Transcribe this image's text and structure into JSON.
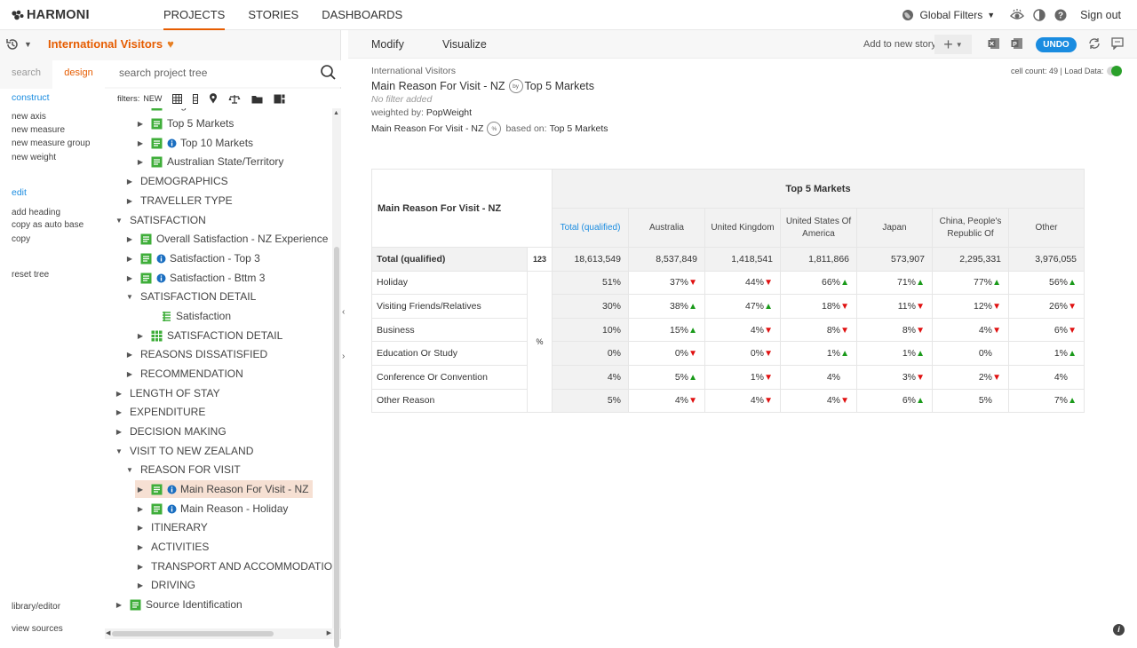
{
  "app": {
    "brand": "HARMONI"
  },
  "topnav": {
    "items": [
      {
        "label": "PROJECTS",
        "active": true
      },
      {
        "label": "STORIES"
      },
      {
        "label": "DASHBOARDS"
      }
    ],
    "global_filters": "Global Filters",
    "sign_out": "Sign out"
  },
  "project": {
    "title": "International Visitors"
  },
  "left_tabs": {
    "search": "search",
    "design": "design"
  },
  "search": {
    "placeholder": "search project tree"
  },
  "filters": {
    "label": "filters:",
    "new": "NEW"
  },
  "sidemenu": {
    "construct": "construct",
    "new_axis": "new axis",
    "new_measure": "new measure",
    "new_measure_group": "new measure group",
    "new_weight": "new weight",
    "edit": "edit",
    "add_heading": "add heading",
    "copy_as_auto_base": "copy as auto base",
    "copy": "copy",
    "reset_tree": "reset tree",
    "library_editor": "library/editor",
    "view_sources": "view sources"
  },
  "tree": [
    {
      "label": "Regions",
      "icon": "doc-icon"
    },
    {
      "label": "Top 5 Markets",
      "icon": "doc-icon"
    },
    {
      "label": "Top 10 Markets",
      "icon": "doc-icon"
    },
    {
      "label": "Australian State/Territory",
      "icon": "doc-icon"
    },
    {
      "label": "DEMOGRAPHICS"
    },
    {
      "label": "TRAVELLER TYPE"
    },
    {
      "label": "SATISFACTION",
      "expanded": true
    },
    {
      "label": "Overall Satisfaction - NZ Experience",
      "icon": "doc-icon"
    },
    {
      "label": "Satisfaction - Top 3",
      "icon": "doc-icon"
    },
    {
      "label": "Satisfaction - Bttm 3",
      "icon": "doc-icon"
    },
    {
      "label": "SATISFACTION DETAIL",
      "expanded": true
    },
    {
      "label": "Satisfaction",
      "icon": "list-icon"
    },
    {
      "label": "SATISFACTION DETAIL",
      "icon": "grid-icon"
    },
    {
      "label": "REASONS DISSATISFIED"
    },
    {
      "label": "RECOMMENDATION"
    },
    {
      "label": "LENGTH OF STAY"
    },
    {
      "label": "EXPENDITURE"
    },
    {
      "label": "DECISION MAKING"
    },
    {
      "label": "VISIT TO NEW ZEALAND",
      "expanded": true
    },
    {
      "label": "REASON FOR VISIT",
      "expanded": true
    },
    {
      "label": "Main Reason For Visit - NZ",
      "icon": "doc-icon",
      "selected": true
    },
    {
      "label": "Main Reason - Holiday",
      "icon": "doc-icon"
    },
    {
      "label": "ITINERARY"
    },
    {
      "label": "ACTIVITIES"
    },
    {
      "label": "TRANSPORT AND ACCOMMODATION"
    },
    {
      "label": "DRIVING"
    },
    {
      "label": "Source Identification",
      "icon": "doc-icon"
    }
  ],
  "toolbar": {
    "modify": "Modify",
    "visualize": "Visualize",
    "add_to_story": "Add to new story",
    "undo": "UNDO"
  },
  "report": {
    "breadcrumb": "International Visitors",
    "title_row": "Main Reason For Visit - NZ",
    "title_col": "Top 5 Markets",
    "by": "by",
    "no_filter": "No filter added",
    "weighted_by_label": "weighted by:",
    "weighted_by_value": "PopWeight",
    "based_row": "Main Reason For Visit - NZ",
    "percent_badge": "%",
    "based_on_label": "based on:",
    "based_on_value": "Top 5 Markets",
    "cell_count": "cell count: 49 | Load Data:"
  },
  "table": {
    "row_axis": "Main Reason For Visit - NZ",
    "col_axis": "Top 5 Markets",
    "columns": [
      "Total (qualified)",
      "Australia",
      "United Kingdom",
      "United States Of America",
      "Japan",
      "China, People's Republic Of",
      "Other"
    ],
    "total_row": {
      "label": "Total (qualified)",
      "stat": "123",
      "values": [
        "18,613,549",
        "8,537,849",
        "1,418,541",
        "1,811,866",
        "573,907",
        "2,295,331",
        "3,976,055"
      ]
    },
    "stat_percent": "%",
    "rows": [
      {
        "label": "Holiday",
        "values": [
          "51%",
          "37%",
          "44%",
          "66%",
          "71%",
          "77%",
          "56%"
        ],
        "sig": [
          "",
          "down",
          "down",
          "up",
          "up",
          "up",
          "up"
        ]
      },
      {
        "label": "Visiting Friends/Relatives",
        "values": [
          "30%",
          "38%",
          "47%",
          "18%",
          "11%",
          "12%",
          "26%"
        ],
        "sig": [
          "",
          "up",
          "up",
          "down",
          "down",
          "down",
          "down"
        ]
      },
      {
        "label": "Business",
        "values": [
          "10%",
          "15%",
          "4%",
          "8%",
          "8%",
          "4%",
          "6%"
        ],
        "sig": [
          "",
          "up",
          "down",
          "down",
          "down",
          "down",
          "down"
        ]
      },
      {
        "label": "Education Or Study",
        "values": [
          "0%",
          "0%",
          "0%",
          "1%",
          "1%",
          "0%",
          "1%"
        ],
        "sig": [
          "",
          "down",
          "down",
          "up",
          "up",
          "",
          "up"
        ]
      },
      {
        "label": "Conference Or Convention",
        "values": [
          "4%",
          "5%",
          "1%",
          "4%",
          "3%",
          "2%",
          "4%"
        ],
        "sig": [
          "",
          "up",
          "down",
          "",
          "down",
          "down",
          ""
        ]
      },
      {
        "label": "Other Reason",
        "values": [
          "5%",
          "4%",
          "4%",
          "4%",
          "6%",
          "5%",
          "7%"
        ],
        "sig": [
          "",
          "down",
          "down",
          "down",
          "up",
          "",
          "up"
        ]
      }
    ]
  },
  "colors": {
    "accent": "#e65c00",
    "link": "#1a8ce0",
    "up": "#1a9a1a",
    "down": "#e01010",
    "doc_icon": "#3fae3a"
  }
}
